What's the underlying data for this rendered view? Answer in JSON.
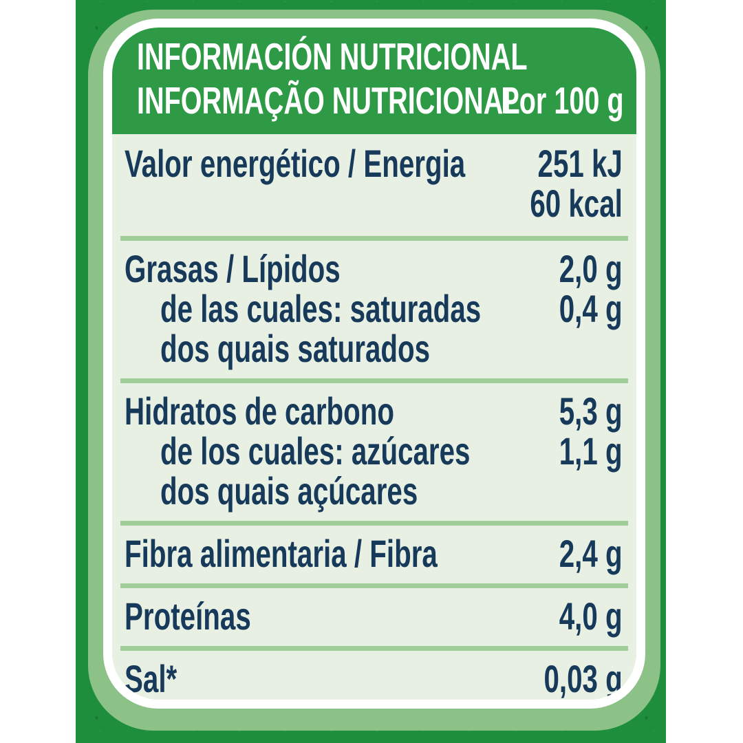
{
  "header": {
    "title_line1": "INFORMACIÓN NUTRICIONAL",
    "title_line2": "INFORMAÇÃO NUTRICIONAL",
    "per_serving": "Por 100 g"
  },
  "table": {
    "rows": [
      {
        "label": "Valor energético / Energia",
        "values": [
          "251 kJ",
          "60 kcal"
        ]
      },
      {
        "label": "Grasas / Lípidos",
        "value": "2,0 g",
        "subrow1": "de las cuales: saturadas",
        "subrow1_value": "0,4 g",
        "subrow2": "dos quais saturados"
      },
      {
        "label": "Hidratos de carbono",
        "value": "5,3 g",
        "subrow1": "de los cuales: azúcares",
        "subrow1_value": "1,1 g",
        "subrow2": "dos quais açúcares"
      },
      {
        "label": "Fibra alimentaria / Fibra",
        "value": "2,4 g"
      },
      {
        "label": "Proteínas",
        "value": "4,0 g"
      },
      {
        "label": "Sal*",
        "value": "0,03 g"
      }
    ]
  },
  "colors": {
    "page-bg": "#ffffff",
    "panel-green": "#1f8e3c",
    "sage": "#8cc287",
    "ring-white": "#ffffff",
    "header-green": "#2e9a46",
    "title-white": "#ffffff",
    "body-bg": "#e7f0e2",
    "ink": "#17395a",
    "divider": "#9fce99"
  }
}
